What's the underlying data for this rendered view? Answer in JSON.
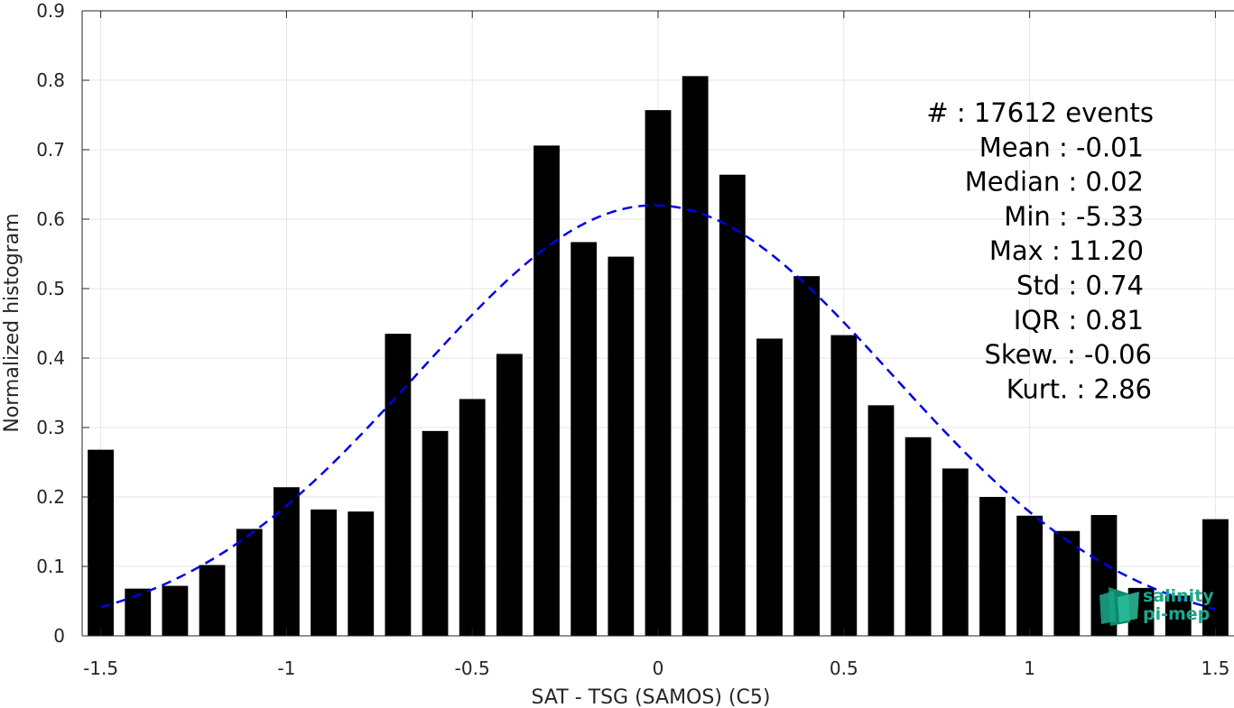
{
  "chart_data": {
    "type": "bar",
    "title": "",
    "xlabel": "SAT - TSG (SAMOS) (C5)",
    "ylabel": "Normalized histogram",
    "xlim": [
      -1.55,
      1.55
    ],
    "ylim": [
      0,
      0.9
    ],
    "xticks": [
      "-1.5",
      "-1",
      "-0.5",
      "0",
      "0.5",
      "1",
      "1.5"
    ],
    "xtick_values": [
      -1.5,
      -1,
      -0.5,
      0,
      0.5,
      1,
      1.5
    ],
    "yticks": [
      "0",
      "0.1",
      "0.2",
      "0.3",
      "0.4",
      "0.5",
      "0.6",
      "0.7",
      "0.8",
      "0.9"
    ],
    "ytick_values": [
      0,
      0.1,
      0.2,
      0.3,
      0.4,
      0.5,
      0.6,
      0.7,
      0.8,
      0.9
    ],
    "grid": true,
    "bar_color": "#000000",
    "bar_width": 0.07,
    "x": [
      -1.5,
      -1.4,
      -1.3,
      -1.2,
      -1.1,
      -1.0,
      -0.9,
      -0.8,
      -0.7,
      -0.6,
      -0.5,
      -0.4,
      -0.3,
      -0.2,
      -0.1,
      0.0,
      0.1,
      0.2,
      0.3,
      0.4,
      0.5,
      0.6,
      0.7,
      0.8,
      0.9,
      1.0,
      1.1,
      1.2,
      1.3,
      1.4,
      1.5
    ],
    "values": [
      0.268,
      0.068,
      0.072,
      0.102,
      0.154,
      0.214,
      0.182,
      0.179,
      0.435,
      0.295,
      0.341,
      0.406,
      0.706,
      0.567,
      0.546,
      0.757,
      0.806,
      0.664,
      0.428,
      0.518,
      0.433,
      0.332,
      0.286,
      0.241,
      0.2,
      0.173,
      0.151,
      0.174,
      0.069,
      0.058,
      0.168
    ],
    "fit_curve": {
      "style": "dashed",
      "color": "#0000e6",
      "mean": -0.01,
      "std": 0.64,
      "peak": 0.62,
      "x_range": [
        -1.5,
        1.5
      ]
    },
    "stats": [
      {
        "label": "#  : 17612 events",
        "anchor": "end"
      },
      {
        "label": "Mean : -0.01",
        "anchor": "end"
      },
      {
        "label": "Median : 0.02",
        "anchor": "end"
      },
      {
        "label": "Min : -5.33",
        "anchor": "end"
      },
      {
        "label": "Max : 11.20",
        "anchor": "end"
      },
      {
        "label": "Std : 0.74",
        "anchor": "end"
      },
      {
        "label": "IQR : 0.81",
        "anchor": "end"
      },
      {
        "label": "Skew. : -0.06",
        "anchor": "end"
      },
      {
        "label": "Kurt. : 2.86",
        "anchor": "end"
      }
    ],
    "logo": {
      "line1": "salinity",
      "line2": "pi-mep",
      "color": "#1aa88c"
    }
  }
}
